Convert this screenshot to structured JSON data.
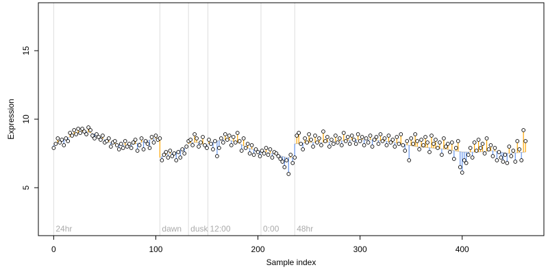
{
  "chart_data": {
    "type": "scatter",
    "title": "",
    "xlabel": "Sample index",
    "ylabel": "Expression",
    "xlim": [
      -15,
      480
    ],
    "ylim": [
      1.5,
      18.5
    ],
    "x_ticks": [
      0,
      100,
      200,
      300,
      400
    ],
    "y_ticks": [
      5,
      10,
      15
    ],
    "grid": false,
    "legend": "none",
    "colors": {
      "point_fill": "#ffffff",
      "point_stroke": "#000000",
      "residual_up": "#ffa500",
      "residual_down": "#6495ed",
      "phase_line": "#dddddd",
      "phase_label": "#aaaaaa"
    },
    "phase_markers": [
      {
        "x": 0,
        "label": "24hr"
      },
      {
        "x": 104,
        "label": "dawn"
      },
      {
        "x": 132,
        "label": "dusk"
      },
      {
        "x": 151,
        "label": "12:00"
      },
      {
        "x": 203,
        "label": "0:00"
      },
      {
        "x": 236,
        "label": "48hr"
      }
    ],
    "trend_segments": [
      {
        "x": [
          0,
          4,
          8,
          12,
          16,
          20,
          24,
          28,
          32,
          36,
          40,
          45,
          50,
          55,
          60,
          65,
          70,
          75,
          80,
          85,
          90,
          95,
          100,
          104
        ],
        "y": [
          8.1,
          8.3,
          8.4,
          8.6,
          8.7,
          8.9,
          9.0,
          9.1,
          9.1,
          9.0,
          8.9,
          8.7,
          8.5,
          8.3,
          8.2,
          8.1,
          8.1,
          8.1,
          8.2,
          8.3,
          8.4,
          8.5,
          8.6,
          8.6
        ]
      },
      {
        "x": [
          104,
          110,
          115,
          120,
          125,
          132
        ],
        "y": [
          7.2,
          7.4,
          7.5,
          7.6,
          7.8,
          8.0
        ]
      },
      {
        "x": [
          132,
          136,
          140,
          145,
          151
        ],
        "y": [
          8.2,
          8.3,
          8.3,
          8.2,
          8.1
        ]
      },
      {
        "x": [
          151,
          155,
          160,
          165,
          170,
          175,
          180,
          185,
          190,
          195,
          203
        ],
        "y": [
          8.2,
          8.3,
          8.4,
          8.5,
          8.5,
          8.4,
          8.3,
          8.1,
          7.9,
          7.8,
          7.6
        ]
      },
      {
        "x": [
          203,
          208,
          213,
          218,
          223,
          228,
          236
        ],
        "y": [
          7.6,
          7.6,
          7.5,
          7.4,
          7.3,
          7.2,
          7.2
        ]
      },
      {
        "x": [
          236,
          250,
          265,
          280,
          295,
          310,
          325,
          340,
          355,
          370,
          385,
          400,
          415,
          430,
          445,
          462
        ],
        "y": [
          8.2,
          8.3,
          8.3,
          8.4,
          8.5,
          8.5,
          8.4,
          8.2,
          8.0,
          7.9,
          7.8,
          7.6,
          7.6,
          7.7,
          7.5,
          7.6
        ]
      }
    ],
    "points": {
      "x": [
        0,
        2,
        4,
        6,
        8,
        10,
        12,
        14,
        16,
        18,
        20,
        22,
        24,
        26,
        28,
        30,
        32,
        34,
        36,
        38,
        40,
        42,
        44,
        46,
        48,
        50,
        52,
        54,
        56,
        58,
        60,
        62,
        64,
        66,
        68,
        70,
        72,
        74,
        76,
        78,
        80,
        82,
        84,
        86,
        88,
        90,
        92,
        94,
        96,
        98,
        100,
        102,
        104,
        106,
        108,
        110,
        112,
        114,
        116,
        118,
        120,
        122,
        124,
        126,
        128,
        130,
        132,
        134,
        136,
        138,
        140,
        142,
        144,
        146,
        148,
        150,
        152,
        154,
        156,
        158,
        160,
        162,
        164,
        166,
        168,
        170,
        172,
        174,
        176,
        178,
        180,
        182,
        184,
        186,
        188,
        190,
        192,
        194,
        196,
        198,
        200,
        202,
        204,
        206,
        208,
        210,
        212,
        214,
        216,
        218,
        220,
        222,
        224,
        226,
        228,
        230,
        232,
        234,
        236,
        238,
        240,
        242,
        244,
        246,
        248,
        250,
        252,
        254,
        256,
        258,
        260,
        262,
        264,
        266,
        268,
        270,
        272,
        274,
        276,
        278,
        280,
        282,
        284,
        286,
        288,
        290,
        292,
        294,
        296,
        298,
        300,
        302,
        304,
        306,
        308,
        310,
        312,
        314,
        316,
        318,
        320,
        322,
        324,
        326,
        328,
        330,
        332,
        334,
        336,
        338,
        340,
        342,
        344,
        346,
        348,
        350,
        352,
        354,
        356,
        358,
        360,
        362,
        364,
        366,
        368,
        370,
        372,
        374,
        376,
        378,
        380,
        382,
        384,
        386,
        388,
        390,
        392,
        394,
        396,
        398,
        400,
        402,
        404,
        406,
        408,
        410,
        412,
        414,
        416,
        418,
        420,
        422,
        424,
        426,
        428,
        430,
        432,
        434,
        436,
        438,
        440,
        442,
        444,
        446,
        448,
        450,
        452,
        454,
        456,
        458,
        460,
        462
      ],
      "y": [
        7.9,
        8.2,
        8.6,
        8.3,
        8.5,
        8.1,
        8.6,
        8.4,
        9.0,
        8.8,
        9.2,
        8.9,
        9.3,
        9.0,
        9.3,
        9.1,
        8.9,
        9.4,
        9.2,
        8.8,
        8.6,
        8.9,
        8.7,
        8.5,
        8.8,
        8.3,
        8.4,
        8.6,
        8.0,
        8.3,
        8.4,
        8.1,
        7.8,
        8.2,
        7.9,
        8.4,
        8.0,
        8.2,
        7.9,
        8.3,
        8.5,
        7.7,
        8.1,
        8.6,
        7.8,
        8.4,
        8.2,
        7.9,
        8.7,
        8.3,
        8.8,
        8.5,
        8.6,
        7.0,
        7.4,
        7.6,
        7.2,
        7.7,
        7.3,
        7.5,
        7.0,
        7.6,
        7.2,
        7.8,
        7.5,
        8.0,
        8.4,
        8.5,
        8.1,
        8.9,
        8.6,
        8.0,
        8.3,
        8.7,
        8.1,
        7.9,
        8.5,
        8.2,
        7.8,
        8.4,
        7.3,
        7.9,
        8.6,
        8.3,
        8.9,
        8.5,
        8.8,
        8.1,
        8.7,
        8.3,
        9.0,
        8.4,
        7.7,
        8.6,
        7.9,
        8.2,
        7.5,
        8.1,
        7.4,
        7.8,
        7.6,
        7.3,
        7.7,
        7.5,
        7.9,
        7.4,
        7.8,
        7.2,
        7.6,
        7.5,
        7.3,
        7.1,
        6.9,
        6.5,
        7.0,
        6.0,
        7.4,
        6.8,
        7.2,
        8.8,
        9.0,
        8.2,
        7.8,
        8.6,
        8.3,
        8.9,
        8.5,
        8.0,
        8.8,
        8.3,
        8.6,
        8.1,
        9.1,
        8.4,
        8.7,
        8.0,
        8.5,
        8.2,
        8.8,
        8.3,
        8.6,
        8.1,
        9.0,
        8.4,
        8.7,
        8.2,
        8.8,
        8.5,
        8.2,
        8.9,
        8.4,
        8.7,
        8.1,
        8.6,
        8.3,
        8.8,
        8.0,
        8.5,
        8.7,
        8.2,
        8.9,
        8.4,
        8.6,
        8.1,
        8.8,
        8.3,
        8.5,
        8.0,
        8.7,
        8.2,
        8.9,
        8.1,
        7.7,
        8.4,
        7.0,
        8.6,
        8.2,
        8.9,
        8.4,
        7.8,
        8.5,
        8.1,
        8.7,
        8.3,
        7.6,
        8.8,
        8.2,
        8.5,
        7.9,
        8.3,
        7.4,
        8.6,
        8.0,
        8.2,
        7.6,
        8.3,
        7.1,
        7.9,
        8.4,
        6.5,
        6.1,
        7.0,
        6.8,
        7.4,
        7.9,
        7.2,
        8.3,
        7.7,
        8.5,
        7.9,
        8.2,
        7.5,
        8.6,
        7.8,
        8.1,
        7.3,
        7.9,
        7.0,
        7.6,
        7.2,
        6.9,
        7.4,
        6.8,
        8.0,
        7.3,
        7.7,
        6.9,
        8.4,
        7.8,
        7.0,
        9.2,
        8.4
      ]
    }
  }
}
